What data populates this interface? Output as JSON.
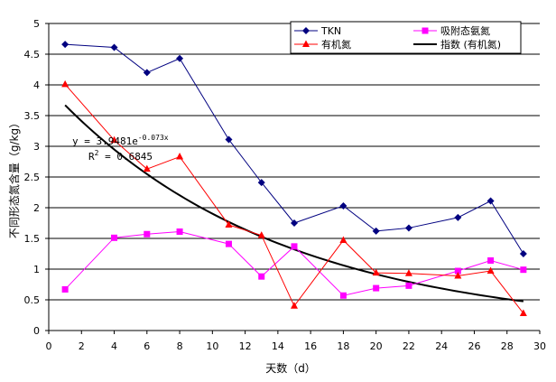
{
  "chart_data": {
    "type": "line",
    "xlabel": "天数（d）",
    "ylabel": "不同形态氮含量（g/kg）",
    "xlim": [
      0,
      30
    ],
    "ylim": [
      0,
      5
    ],
    "x_ticks": [
      0,
      2,
      4,
      6,
      8,
      10,
      12,
      14,
      16,
      18,
      20,
      22,
      24,
      26,
      28,
      30
    ],
    "y_ticks": [
      0,
      0.5,
      1,
      1.5,
      2,
      2.5,
      3,
      3.5,
      4,
      4.5,
      5
    ],
    "y_tick_labels": [
      "0",
      "0.5",
      "1",
      "1.5",
      "2",
      "2.5",
      "3",
      "3.5",
      "4",
      "4.5",
      "5"
    ],
    "x_tick_labels": [
      "0",
      "2",
      "4",
      "6",
      "8",
      "10",
      "12",
      "14",
      "16",
      "18",
      "20",
      "22",
      "24",
      "26",
      "28",
      "30"
    ],
    "horizontal_gridlines": true,
    "legend_position": "top-right",
    "x": [
      1,
      4,
      6,
      8,
      11,
      13,
      15,
      18,
      20,
      22,
      25,
      27,
      29
    ],
    "series": [
      {
        "name": "TKN",
        "color": "#000080",
        "marker": "diamond",
        "values": [
          4.66,
          4.61,
          4.2,
          4.43,
          3.11,
          2.41,
          1.75,
          2.03,
          1.62,
          1.67,
          1.84,
          2.11,
          1.25
        ]
      },
      {
        "name": "吸附态氨氮",
        "color": "#ff00ff",
        "marker": "square",
        "values": [
          0.67,
          1.51,
          1.57,
          1.61,
          1.41,
          0.88,
          1.37,
          0.57,
          0.69,
          0.73,
          0.97,
          1.14,
          0.99
        ]
      },
      {
        "name": "有机氮",
        "color": "#ff0000",
        "marker": "triangle",
        "values": [
          4.01,
          3.1,
          2.63,
          2.83,
          1.72,
          1.55,
          0.4,
          1.47,
          0.94,
          0.93,
          0.89,
          0.97,
          0.28
        ]
      }
    ],
    "trendline": {
      "name": "指数 (有机氮)",
      "color": "#000000",
      "type": "exponential",
      "a": 3.9481,
      "b": -0.073,
      "x_range": [
        1,
        29
      ]
    },
    "annotation": {
      "equation_prefix": "y = 3.9481e",
      "equation_exponent": "-0.073x",
      "r2_prefix": "R",
      "r2_sup": "2",
      "r2_value": " = 0.6845"
    }
  }
}
